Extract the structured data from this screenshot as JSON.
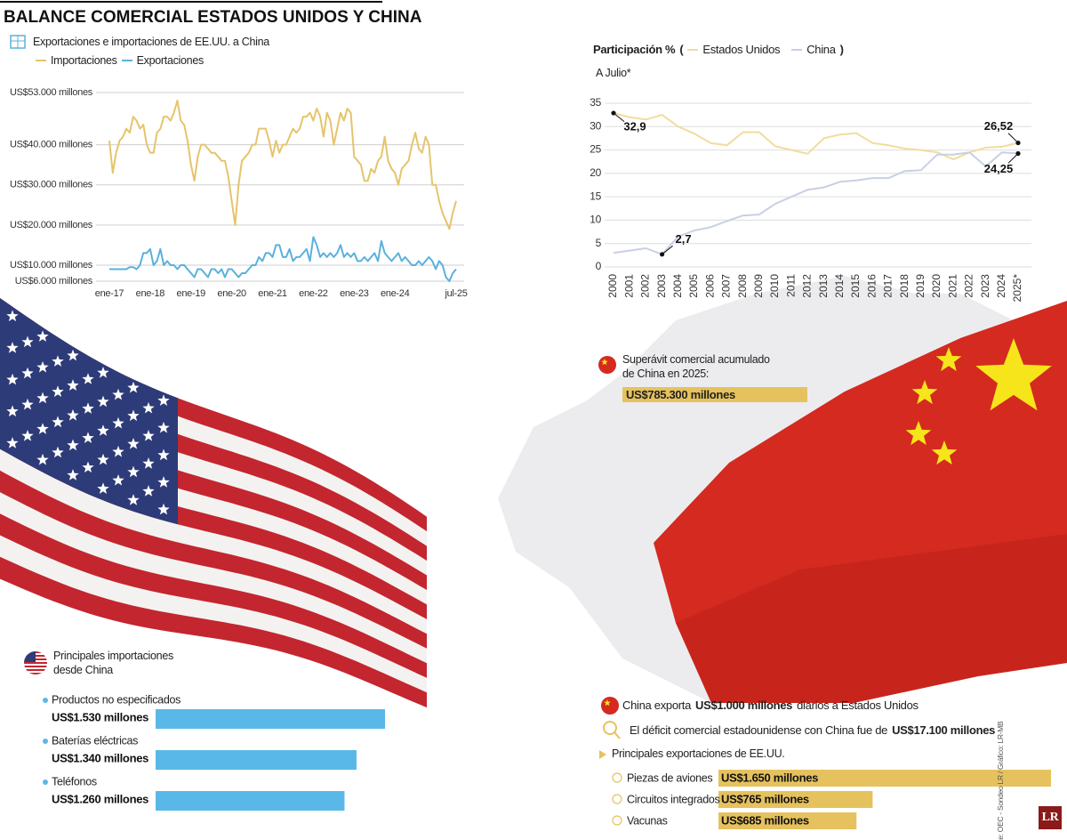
{
  "title": "BALANCE COMERCIAL ESTADOS UNIDOS Y CHINA",
  "chart_data": [
    {
      "type": "line",
      "title": "Exportaciones e importaciones de EE.UU. a China",
      "categories": [
        "ene-17",
        null,
        null,
        null,
        null,
        null,
        null,
        null,
        null,
        null,
        null,
        null,
        "ene-18",
        null,
        null,
        null,
        null,
        null,
        null,
        null,
        null,
        null,
        null,
        null,
        "ene-19",
        null,
        null,
        null,
        null,
        null,
        null,
        null,
        null,
        null,
        null,
        null,
        "ene-20",
        null,
        null,
        null,
        null,
        null,
        null,
        null,
        null,
        null,
        null,
        null,
        "ene-21",
        null,
        null,
        null,
        null,
        null,
        null,
        null,
        null,
        null,
        null,
        null,
        "ene-22",
        null,
        null,
        null,
        null,
        null,
        null,
        null,
        null,
        null,
        null,
        null,
        "ene-23",
        null,
        null,
        null,
        null,
        null,
        null,
        null,
        null,
        null,
        null,
        null,
        "ene-24",
        null,
        null,
        null,
        null,
        null,
        null,
        null,
        null,
        null,
        null,
        null,
        null,
        null,
        null,
        null,
        null,
        null,
        "jul-25"
      ],
      "series": [
        {
          "name": "Importaciones",
          "color": "#e6c46c",
          "values": [
            41000,
            33000,
            38000,
            41000,
            42000,
            44000,
            43000,
            47000,
            46000,
            44000,
            45000,
            40000,
            38000,
            38000,
            43000,
            44000,
            47000,
            47000,
            46000,
            48000,
            51000,
            46000,
            45000,
            41000,
            35000,
            31000,
            37000,
            40000,
            40000,
            39000,
            38000,
            38000,
            37000,
            36000,
            36000,
            32000,
            26000,
            20000,
            30000,
            36000,
            37000,
            38000,
            40000,
            40000,
            44000,
            44000,
            44000,
            41000,
            37000,
            41000,
            38000,
            40000,
            40000,
            42000,
            44000,
            43000,
            44000,
            47000,
            47000,
            48000,
            46000,
            49000,
            47000,
            42000,
            48000,
            46000,
            40000,
            44000,
            48000,
            46000,
            49000,
            48000,
            37000,
            36000,
            35000,
            31000,
            31000,
            34000,
            33000,
            36000,
            37000,
            42000,
            36000,
            34000,
            33000,
            30000,
            34000,
            35000,
            36000,
            40000,
            43000,
            39000,
            38000,
            42000,
            40000,
            30000,
            30000,
            26000,
            23000,
            21000,
            19000,
            23000,
            26000
          ]
        },
        {
          "name": "Exportaciones",
          "color": "#5ab1dd",
          "values": [
            9000,
            9000,
            9000,
            9000,
            9000,
            9000,
            9500,
            9500,
            9000,
            10000,
            13000,
            13000,
            14000,
            10000,
            11000,
            14000,
            10000,
            11000,
            10000,
            10000,
            9000,
            10000,
            10000,
            9000,
            8000,
            7000,
            9000,
            9000,
            8000,
            7000,
            9000,
            9000,
            8000,
            9000,
            7000,
            9000,
            9000,
            8000,
            7000,
            8000,
            8000,
            9000,
            10000,
            10000,
            12000,
            11000,
            13000,
            13000,
            12000,
            15000,
            15000,
            12000,
            12000,
            14000,
            11000,
            12000,
            12000,
            13000,
            14000,
            11000,
            17000,
            15000,
            12000,
            13000,
            12000,
            13000,
            12000,
            13000,
            15000,
            12000,
            13000,
            12000,
            13000,
            11000,
            11000,
            12000,
            11000,
            12000,
            13000,
            11000,
            16000,
            13000,
            12000,
            11000,
            12000,
            13000,
            11000,
            12000,
            11000,
            10000,
            10000,
            11000,
            10000,
            11000,
            12000,
            11000,
            9000,
            11000,
            10000,
            7000,
            6000,
            8000,
            9000
          ]
        }
      ],
      "ylim": [
        6000,
        53000
      ],
      "yticks": [
        {
          "value": 6000,
          "label": "US$6.000 millones"
        },
        {
          "value": 10000,
          "label": "US$10.000 millones"
        },
        {
          "value": 20000,
          "label": "US$20.000 millones"
        },
        {
          "value": 30000,
          "label": "US$30.000 millones"
        },
        {
          "value": 40000,
          "label": "US$40.000 millones"
        },
        {
          "value": 53000,
          "label": "US$53.000 millones"
        }
      ],
      "grid": true
    },
    {
      "type": "line",
      "title": "Participación %",
      "legend_brackets": [
        "(",
        ")"
      ],
      "subtitle": "A Julio*",
      "categories": [
        "2000",
        "2001",
        "2002",
        "2003",
        "2004",
        "2005",
        "2006",
        "2007",
        "2008",
        "2009",
        "2010",
        "2011",
        "2012",
        "2013",
        "2014",
        "2015",
        "2016",
        "2017",
        "2018",
        "2019",
        "2020",
        "2021",
        "2022",
        "2023",
        "2024",
        "2025*"
      ],
      "series": [
        {
          "name": "Estados Unidos",
          "color": "#f2dc9e",
          "values": [
            32.9,
            32,
            31.5,
            32.5,
            30,
            28.5,
            26.5,
            26,
            28.8,
            28.8,
            25.8,
            25,
            24.2,
            27.5,
            28.3,
            28.6,
            26.5,
            26,
            25.3,
            25,
            24.5,
            23,
            24.5,
            25.5,
            25.7,
            26.52
          ],
          "value_labels": [
            "32,9",
            null,
            null,
            null,
            null,
            null,
            null,
            null,
            null,
            null,
            null,
            null,
            null,
            null,
            null,
            null,
            null,
            null,
            null,
            null,
            null,
            null,
            null,
            null,
            null,
            "26,52"
          ]
        },
        {
          "name": "China",
          "color": "#c9cfe6",
          "values": [
            3,
            3.5,
            4,
            2.7,
            6.5,
            7.8,
            8.5,
            9.8,
            11,
            11.2,
            13.5,
            15,
            16.5,
            17,
            18.2,
            18.5,
            19,
            19,
            20.5,
            20.7,
            24,
            24,
            24.5,
            21.5,
            24.5,
            24.25
          ],
          "value_labels": [
            null,
            null,
            null,
            "2,7",
            null,
            null,
            null,
            null,
            null,
            null,
            null,
            null,
            null,
            null,
            null,
            null,
            null,
            null,
            null,
            null,
            null,
            null,
            null,
            null,
            null,
            "24,25"
          ]
        }
      ],
      "ylim": [
        0,
        35
      ],
      "yticks": [
        0,
        5,
        10,
        15,
        20,
        25,
        30,
        35
      ],
      "grid": true
    },
    {
      "type": "bar",
      "title": "Principales importaciones desde China",
      "categories": [
        "Productos no especificados",
        "Baterías eléctricas",
        "Teléfonos"
      ],
      "values": [
        1530,
        1340,
        1260
      ],
      "value_labels": [
        "US$1.530 millones",
        "US$1.340 millones",
        "US$1.260 millones"
      ],
      "color": "#5ab8e8"
    },
    {
      "type": "bar",
      "title": "Principales exportaciones de EE.UU.",
      "categories": [
        "Piezas de aviones",
        "Circuitos integrados",
        "Vacunas"
      ],
      "values": [
        1650,
        765,
        685
      ],
      "value_labels": [
        "US$1.650 millones",
        "US$765 millones",
        "US$685 millones"
      ],
      "color": "#e6c25e"
    }
  ],
  "surplus": {
    "label": "Superávit comercial acumulado de China en 2025:",
    "value_label": "US$785.300 millones"
  },
  "daily_exports": {
    "before": "China exporta",
    "bold": "US$1.000 millones",
    "after": "diarios a Estados Unidos"
  },
  "deficit": {
    "before": "El déficit comercial  estadounidense con China fue de",
    "bold": "US$17.100 millones"
  },
  "source": "Fuente: OEC - Sondeo LR / Gráfico: LR-MB",
  "logo": "LR"
}
